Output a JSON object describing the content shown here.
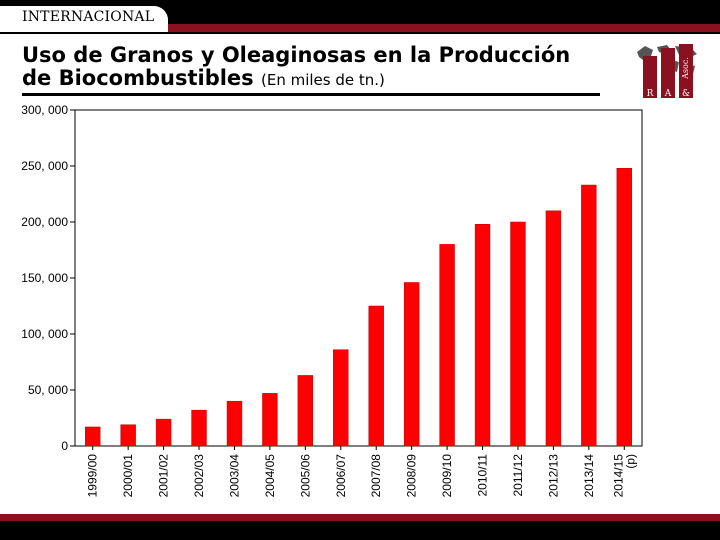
{
  "header": {
    "section_label": "INTERNACIONAL",
    "title_line1": "Uso de Granos y Oleaginosas en la Producción",
    "title_line2": "de Biocombustibles",
    "subtitle": "(En miles de tn.)"
  },
  "logo": {
    "text_r": "R",
    "text_a": "A",
    "text_amp": "&",
    "text_asoc": "Asoc."
  },
  "colors": {
    "bar": "#ff0000",
    "bar_edge": "#c00000",
    "accent": "#8b1020",
    "dark": "#000000"
  },
  "chart_data": {
    "type": "bar",
    "title": "Uso de Granos y Oleaginosas en la Producción de Biocombustibles",
    "units": "miles de tn.",
    "categories": [
      "1999/00",
      "2000/01",
      "2001/02",
      "2002/03",
      "2003/04",
      "2004/05",
      "2005/06",
      "2006/07",
      "2007/08",
      "2008/09",
      "2009/10",
      "2010/11",
      "2011/12",
      "2012/13",
      "2013/14",
      "2014/15 (p)"
    ],
    "values": [
      17000,
      19000,
      24000,
      32000,
      40000,
      47000,
      63000,
      86000,
      125000,
      146000,
      180000,
      198000,
      200000,
      210000,
      233000,
      248000
    ],
    "ylim": [
      0,
      300000
    ],
    "yticks": [
      0,
      50000,
      100000,
      150000,
      200000,
      250000,
      300000
    ],
    "ytick_labels": [
      "0",
      "50, 000",
      "100, 000",
      "150, 000",
      "200, 000",
      "250, 000",
      "300, 000"
    ],
    "grid": false,
    "xlabel": "",
    "ylabel": ""
  }
}
